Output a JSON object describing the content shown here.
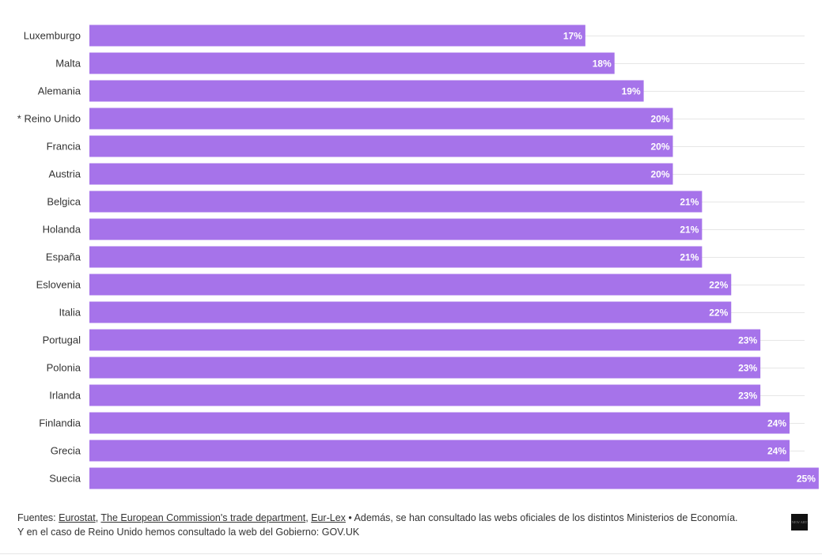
{
  "chart_data": {
    "type": "bar",
    "orientation": "horizontal",
    "categories": [
      "Luxemburgo",
      "Malta",
      "Alemania",
      "* Reino Unido",
      "Francia",
      "Austria",
      "Belgica",
      "Holanda",
      "España",
      "Eslovenia",
      "Italia",
      "Portugal",
      "Polonia",
      "Irlanda",
      "Finlandia",
      "Grecia",
      "Suecia"
    ],
    "values": [
      17,
      18,
      19,
      20,
      20,
      20,
      21,
      21,
      21,
      22,
      22,
      23,
      23,
      23,
      24,
      24,
      25
    ],
    "value_suffix": "%",
    "xlim": [
      0,
      26
    ],
    "bar_color": "#a673ea",
    "grid": true,
    "title": "",
    "xlabel": "",
    "ylabel": ""
  },
  "footer": {
    "prefix": "Fuentes: ",
    "source1": "Eurostat",
    "sep1": ", ",
    "source2": "The European Commission's trade department",
    "sep2": ", ",
    "source3": "Eur-Lex",
    "note": " • Además, se han consultado las webs oficiales de los distintos Ministerios de Economía.",
    "line2": "Y en el caso de Reino Unido hemos consultado la web del Gobierno: GOV.UK"
  },
  "logo": {
    "text": "NEW ART"
  }
}
